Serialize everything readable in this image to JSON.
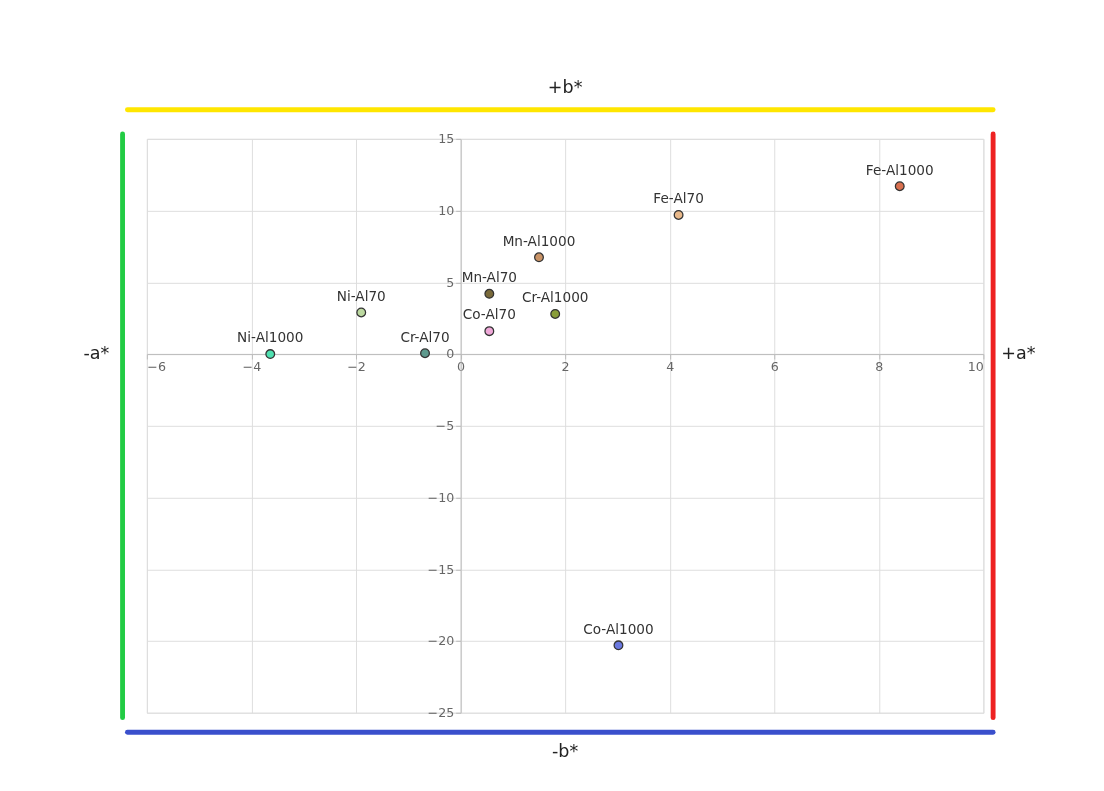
{
  "chart_data": {
    "type": "scatter",
    "series": [
      {
        "name": "Fe-Al1000",
        "color": "#d9704f",
        "x": [
          8.4
        ],
        "values": [
          11.7
        ]
      },
      {
        "name": "Fe-Al70",
        "color": "#e8b88a",
        "x": [
          4.17
        ],
        "values": [
          9.7
        ]
      },
      {
        "name": "Mn-Al1000",
        "color": "#c99366",
        "x": [
          1.5
        ],
        "values": [
          6.75
        ]
      },
      {
        "name": "Mn-Al70",
        "color": "#7a6a3a",
        "x": [
          0.55
        ],
        "values": [
          4.2
        ]
      },
      {
        "name": "Cr-Al1000",
        "color": "#8a9e3a",
        "x": [
          1.81
        ],
        "values": [
          2.8
        ]
      },
      {
        "name": "Co-Al70",
        "color": "#efa8d8",
        "x": [
          0.55
        ],
        "values": [
          1.6
        ]
      },
      {
        "name": "Cr-Al70",
        "color": "#5e9a8e",
        "x": [
          -0.68
        ],
        "values": [
          0.06
        ]
      },
      {
        "name": "Ni-Al70",
        "color": "#bcd9a0",
        "x": [
          -1.9
        ],
        "values": [
          2.9
        ]
      },
      {
        "name": "Ni-Al1000",
        "color": "#4fe0b0",
        "x": [
          -3.64
        ],
        "values": [
          0.0
        ]
      },
      {
        "name": "Co-Al1000",
        "color": "#6a78e0",
        "x": [
          3.02
        ],
        "values": [
          -20.3
        ]
      }
    ],
    "xlim": [
      -6,
      10
    ],
    "xticks": [
      -6,
      -4,
      -2,
      0,
      2,
      4,
      6,
      8,
      10
    ],
    "ylim": [
      -25,
      15
    ],
    "yticks": [
      -25,
      -20,
      -15,
      -10,
      -5,
      0,
      5,
      10,
      15
    ],
    "grid": true,
    "marker": "circle",
    "legend": false,
    "annotations": [
      "+b*",
      "-b*",
      "-a*",
      "+a*"
    ]
  }
}
